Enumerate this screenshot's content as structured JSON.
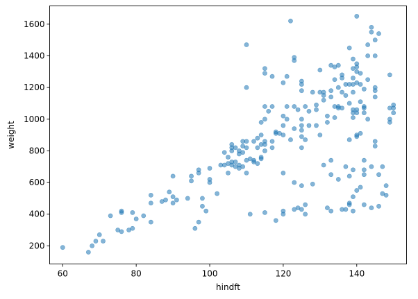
{
  "chart_data": {
    "type": "scatter",
    "title": "",
    "xlabel": "hindft",
    "ylabel": "weight",
    "xlim": [
      56.45,
      153.55
    ],
    "ylim": [
      85.6,
      1715.4
    ],
    "xticks": [
      60,
      80,
      100,
      120,
      140
    ],
    "yticks": [
      200,
      400,
      600,
      800,
      1000,
      1200,
      1400,
      1600
    ],
    "grid": false,
    "legend": "none",
    "marker": {
      "color": "#1f77b4",
      "alpha": 0.55,
      "edge_color": "#1f77b4"
    },
    "points": [
      [
        60,
        190
      ],
      [
        67,
        160
      ],
      [
        68,
        200
      ],
      [
        69,
        230
      ],
      [
        70,
        270
      ],
      [
        71,
        230
      ],
      [
        73,
        390
      ],
      [
        75,
        300
      ],
      [
        76,
        410
      ],
      [
        76,
        420
      ],
      [
        76,
        290
      ],
      [
        78,
        300
      ],
      [
        79,
        310
      ],
      [
        79,
        410
      ],
      [
        80,
        370
      ],
      [
        82,
        390
      ],
      [
        84,
        350
      ],
      [
        84,
        470
      ],
      [
        84,
        520
      ],
      [
        87,
        480
      ],
      [
        88,
        490
      ],
      [
        89,
        540
      ],
      [
        90,
        640
      ],
      [
        90,
        510
      ],
      [
        90,
        470
      ],
      [
        91,
        490
      ],
      [
        94,
        500
      ],
      [
        95,
        610
      ],
      [
        95,
        640
      ],
      [
        96,
        310
      ],
      [
        97,
        350
      ],
      [
        97,
        660
      ],
      [
        97,
        680
      ],
      [
        98,
        450
      ],
      [
        98,
        500
      ],
      [
        99,
        420
      ],
      [
        100,
        600
      ],
      [
        100,
        620
      ],
      [
        100,
        690
      ],
      [
        102,
        530
      ],
      [
        103,
        710
      ],
      [
        104,
        710
      ],
      [
        104,
        790
      ],
      [
        105,
        660
      ],
      [
        105,
        720
      ],
      [
        105,
        760
      ],
      [
        106,
        710
      ],
      [
        106,
        730
      ],
      [
        106,
        800
      ],
      [
        106,
        820
      ],
      [
        106,
        840
      ],
      [
        107,
        700
      ],
      [
        107,
        730
      ],
      [
        107,
        820
      ],
      [
        108,
        690
      ],
      [
        108,
        710
      ],
      [
        108,
        780
      ],
      [
        108,
        800
      ],
      [
        109,
        700
      ],
      [
        109,
        790
      ],
      [
        109,
        830
      ],
      [
        109,
        860
      ],
      [
        110,
        820
      ],
      [
        110,
        740
      ],
      [
        110,
        660
      ],
      [
        110,
        860
      ],
      [
        110,
        1470
      ],
      [
        110,
        1200
      ],
      [
        111,
        750
      ],
      [
        111,
        400
      ],
      [
        112,
        740
      ],
      [
        112,
        860
      ],
      [
        112,
        730
      ],
      [
        113,
        720
      ],
      [
        113,
        820
      ],
      [
        113,
        880
      ],
      [
        114,
        840
      ],
      [
        114,
        900
      ],
      [
        114,
        980
      ],
      [
        114,
        760
      ],
      [
        114,
        750
      ],
      [
        115,
        1290
      ],
      [
        115,
        1320
      ],
      [
        115,
        1080
      ],
      [
        115,
        1000
      ],
      [
        115,
        860
      ],
      [
        115,
        840
      ],
      [
        115,
        800
      ],
      [
        115,
        410
      ],
      [
        116,
        1050
      ],
      [
        117,
        820
      ],
      [
        117,
        860
      ],
      [
        117,
        1080
      ],
      [
        117,
        1270
      ],
      [
        118,
        360
      ],
      [
        118,
        910
      ],
      [
        118,
        920
      ],
      [
        119,
        910
      ],
      [
        120,
        420
      ],
      [
        120,
        400
      ],
      [
        120,
        660
      ],
      [
        120,
        900
      ],
      [
        120,
        960
      ],
      [
        120,
        1020
      ],
      [
        120,
        1230
      ],
      [
        121,
        1270
      ],
      [
        121,
        1000
      ],
      [
        121,
        1080
      ],
      [
        122,
        1620
      ],
      [
        122,
        870
      ],
      [
        123,
        1390
      ],
      [
        123,
        1370
      ],
      [
        123,
        1080
      ],
      [
        123,
        940
      ],
      [
        123,
        600
      ],
      [
        123,
        430
      ],
      [
        124,
        1060
      ],
      [
        124,
        440
      ],
      [
        125,
        1240
      ],
      [
        125,
        1220
      ],
      [
        125,
        1180
      ],
      [
        125,
        1000
      ],
      [
        125,
        960
      ],
      [
        125,
        930
      ],
      [
        125,
        890
      ],
      [
        125,
        820
      ],
      [
        125,
        580
      ],
      [
        125,
        430
      ],
      [
        126,
        1080
      ],
      [
        126,
        870
      ],
      [
        126,
        400
      ],
      [
        126,
        460
      ],
      [
        127,
        1050
      ],
      [
        127,
        960
      ],
      [
        128,
        1170
      ],
      [
        128,
        590
      ],
      [
        129,
        1060
      ],
      [
        129,
        960
      ],
      [
        129,
        1090
      ],
      [
        130,
        1310
      ],
      [
        130,
        1170
      ],
      [
        130,
        900
      ],
      [
        131,
        1170
      ],
      [
        131,
        1150
      ],
      [
        131,
        1120
      ],
      [
        131,
        710
      ],
      [
        132,
        1020
      ],
      [
        132,
        980
      ],
      [
        132,
        440
      ],
      [
        133,
        1340
      ],
      [
        133,
        1180
      ],
      [
        133,
        1140
      ],
      [
        133,
        740
      ],
      [
        133,
        650
      ],
      [
        133,
        420
      ],
      [
        134,
        1330
      ],
      [
        134,
        1080
      ],
      [
        134,
        1010
      ],
      [
        134,
        1250
      ],
      [
        135,
        1340
      ],
      [
        135,
        1200
      ],
      [
        135,
        1080
      ],
      [
        135,
        1070
      ],
      [
        135,
        620
      ],
      [
        136,
        1280
      ],
      [
        136,
        1260
      ],
      [
        136,
        1170
      ],
      [
        136,
        1070
      ],
      [
        136,
        430
      ],
      [
        137,
        1220
      ],
      [
        137,
        1150
      ],
      [
        137,
        700
      ],
      [
        137,
        430
      ],
      [
        138,
        1450
      ],
      [
        138,
        1220
      ],
      [
        138,
        1100
      ],
      [
        138,
        870
      ],
      [
        138,
        470
      ],
      [
        138,
        460
      ],
      [
        138,
        640
      ],
      [
        139,
        1380
      ],
      [
        139,
        1320
      ],
      [
        139,
        1260
      ],
      [
        139,
        1220
      ],
      [
        139,
        1170
      ],
      [
        139,
        1060
      ],
      [
        139,
        1040
      ],
      [
        139,
        1010
      ],
      [
        139,
        680
      ],
      [
        139,
        510
      ],
      [
        139,
        420
      ],
      [
        140,
        1650
      ],
      [
        140,
        1350
      ],
      [
        140,
        1330
      ],
      [
        140,
        1300
      ],
      [
        140,
        1230
      ],
      [
        140,
        1060
      ],
      [
        140,
        1040
      ],
      [
        140,
        900
      ],
      [
        140,
        890
      ],
      [
        140,
        550
      ],
      [
        141,
        1290
      ],
      [
        141,
        1220
      ],
      [
        141,
        1110
      ],
      [
        141,
        910
      ],
      [
        141,
        570
      ],
      [
        142,
        1190
      ],
      [
        142,
        1080
      ],
      [
        142,
        1070
      ],
      [
        142,
        1040
      ],
      [
        142,
        740
      ],
      [
        142,
        680
      ],
      [
        142,
        650
      ],
      [
        142,
        460
      ],
      [
        143,
        1400
      ],
      [
        143,
        1470
      ],
      [
        143,
        1250
      ],
      [
        143,
        1000
      ],
      [
        144,
        1580
      ],
      [
        144,
        1550
      ],
      [
        144,
        700
      ],
      [
        144,
        440
      ],
      [
        145,
        1500
      ],
      [
        145,
        1200
      ],
      [
        145,
        1180
      ],
      [
        145,
        1140
      ],
      [
        145,
        860
      ],
      [
        145,
        830
      ],
      [
        145,
        1400
      ],
      [
        146,
        1540
      ],
      [
        146,
        650
      ],
      [
        146,
        450
      ],
      [
        147,
        700
      ],
      [
        147,
        530
      ],
      [
        148,
        580
      ],
      [
        148,
        520
      ],
      [
        149,
        1070
      ],
      [
        149,
        1280
      ],
      [
        149,
        1000
      ],
      [
        149,
        980
      ],
      [
        150,
        1090
      ],
      [
        150,
        1070
      ],
      [
        150,
        1040
      ]
    ]
  }
}
